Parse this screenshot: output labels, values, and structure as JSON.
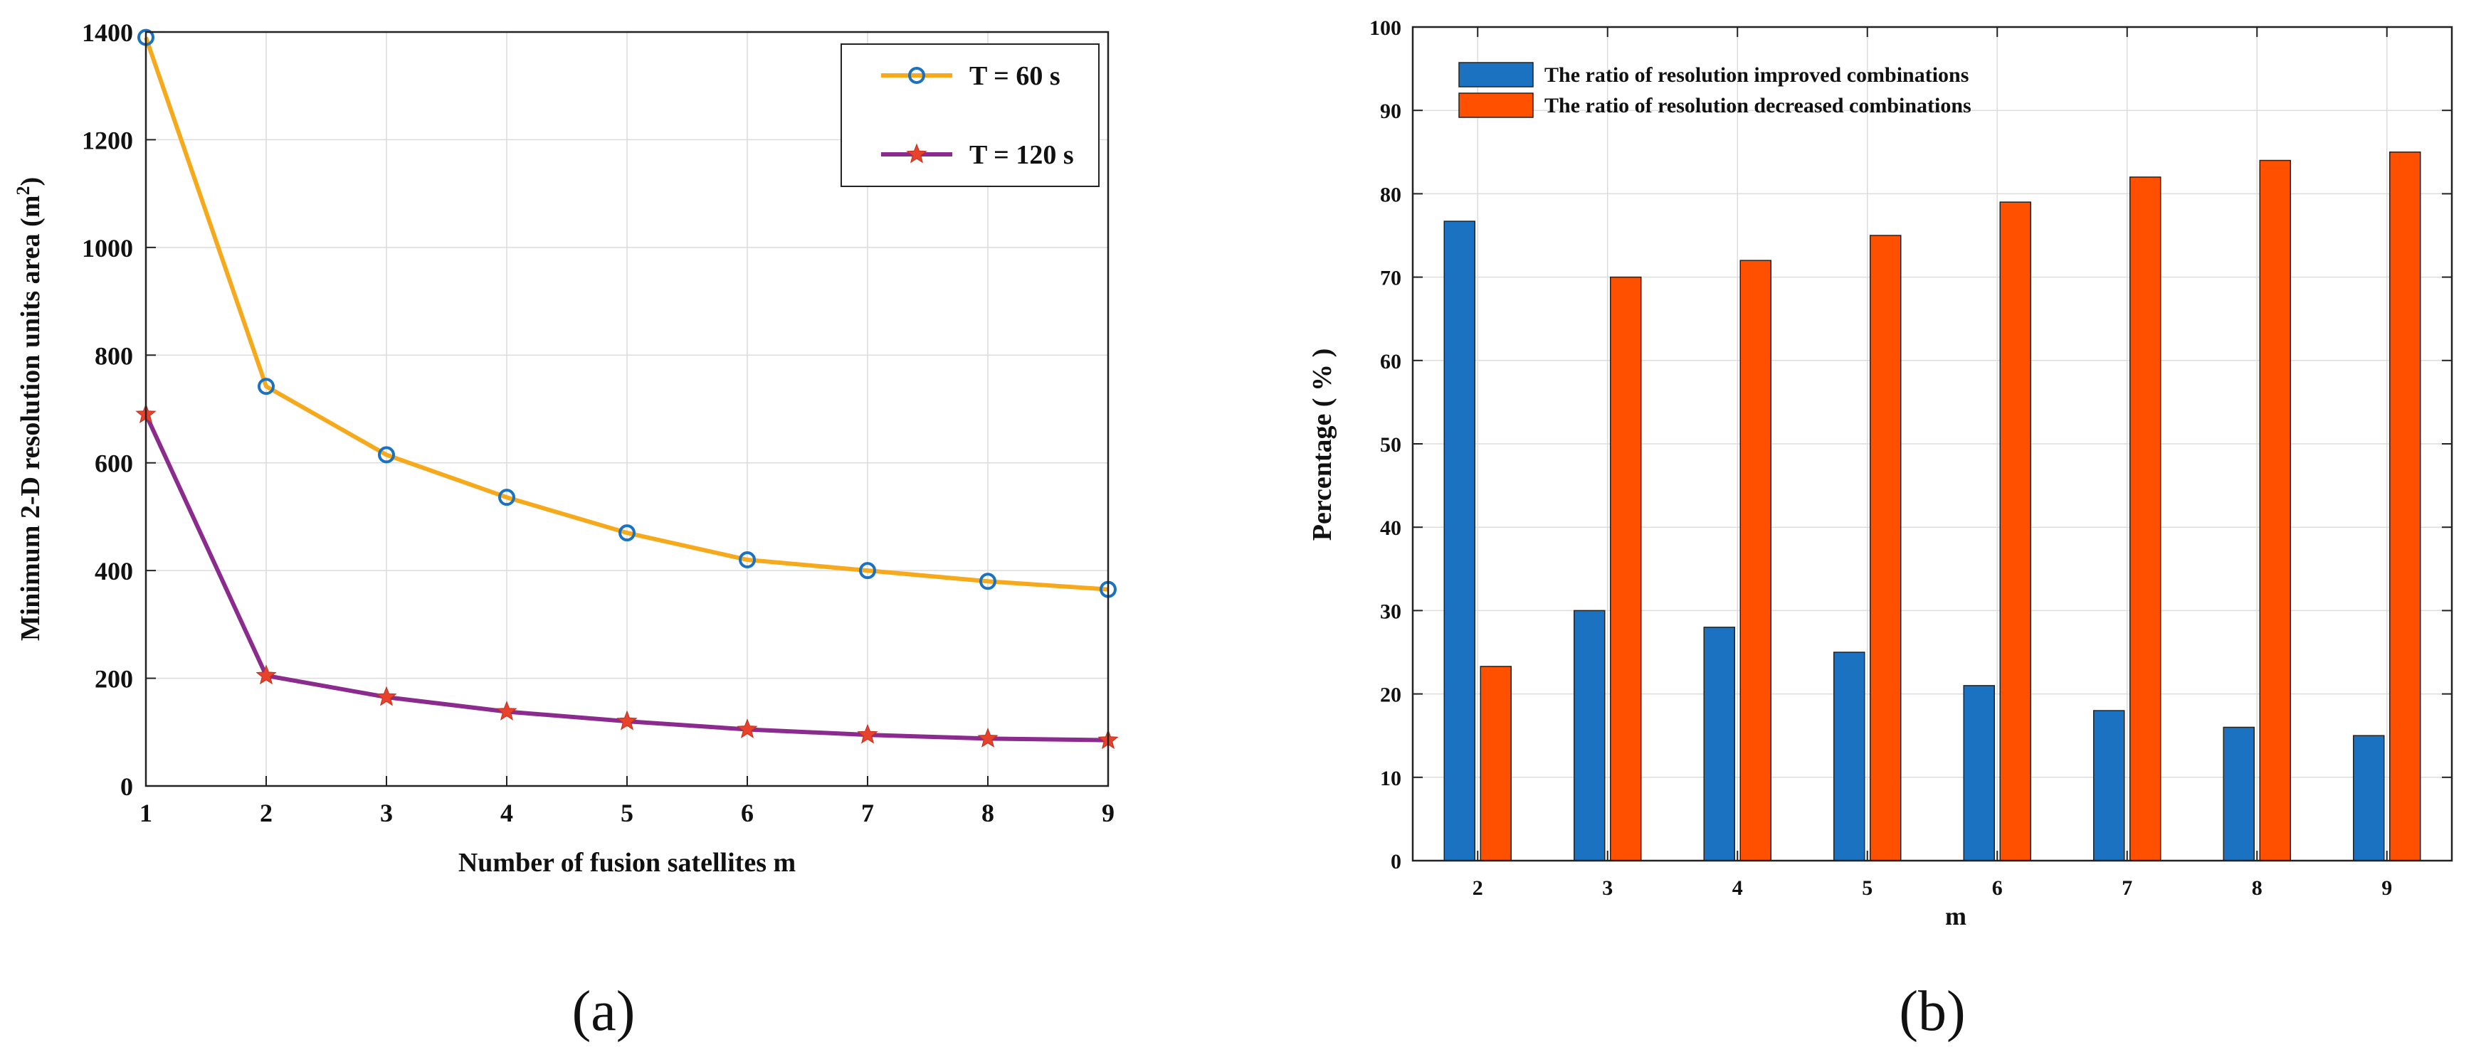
{
  "chart_data": [
    {
      "type": "line",
      "panel_label": "(a)",
      "title": "",
      "xlabel": "Number of fusion satellites m",
      "ylabel_main": "Minimum 2-D resolution units area (m",
      "ylabel_sup": "2",
      "ylabel_close": ")",
      "x": [
        1,
        2,
        3,
        4,
        5,
        6,
        7,
        8,
        9
      ],
      "x_ticks": [
        "1",
        "2",
        "3",
        "4",
        "5",
        "6",
        "7",
        "8",
        "9"
      ],
      "y_ticks": [
        "0",
        "200",
        "400",
        "600",
        "800",
        "1000",
        "1200",
        "1400"
      ],
      "xlim": [
        1,
        9
      ],
      "ylim": [
        0,
        1400
      ],
      "grid": true,
      "legend_position": "top-right",
      "series": [
        {
          "name": "T = 60 s",
          "color": "#f5a91b",
          "marker": "circle",
          "marker_color": "#1b72c0",
          "values": [
            1390,
            742,
            615,
            536,
            470,
            420,
            400,
            380,
            365
          ]
        },
        {
          "name": "T = 120 s",
          "color": "#8c2b8e",
          "marker": "star",
          "marker_color": "#e8412c",
          "values": [
            690,
            205,
            165,
            138,
            120,
            105,
            95,
            88,
            85
          ]
        }
      ]
    },
    {
      "type": "bar",
      "panel_label": "(b)",
      "title": "",
      "xlabel": "m",
      "ylabel": "Percentage ( % )",
      "categories": [
        "2",
        "3",
        "4",
        "5",
        "6",
        "7",
        "8",
        "9"
      ],
      "y_ticks": [
        "0",
        "10",
        "20",
        "30",
        "40",
        "50",
        "60",
        "70",
        "80",
        "90",
        "100"
      ],
      "ylim": [
        0,
        100
      ],
      "grid": true,
      "legend_position": "top-left",
      "series": [
        {
          "name": "The ratio of resolution improved combinations",
          "color": "#1b72c0",
          "values": [
            76.7,
            30,
            28,
            25,
            21,
            18,
            16,
            15
          ]
        },
        {
          "name": "The ratio of resolution decreased combinations",
          "color": "#ff5000",
          "values": [
            23.3,
            70,
            72,
            75,
            79,
            82,
            84,
            85
          ]
        }
      ]
    }
  ]
}
